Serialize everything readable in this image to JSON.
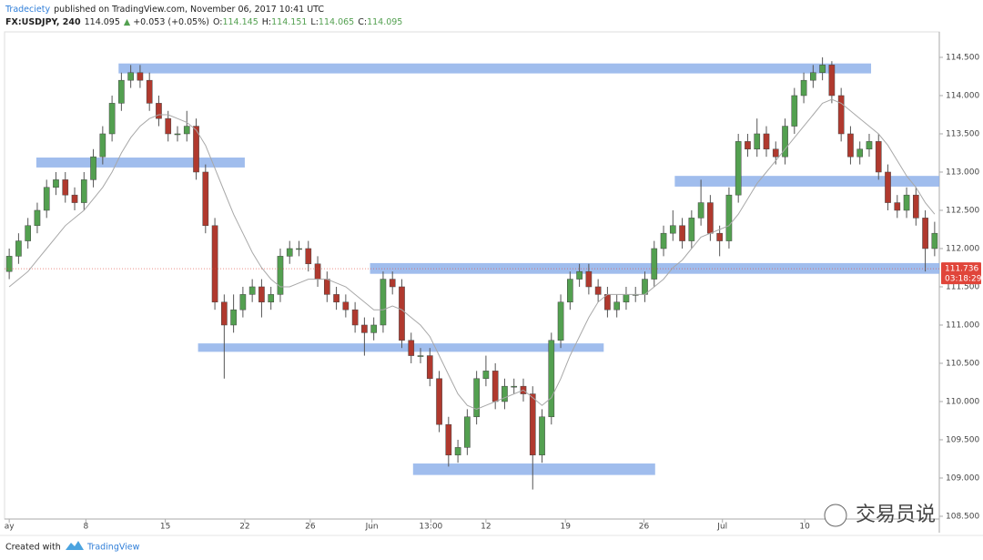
{
  "header": {
    "publisher": "Tradeciety",
    "published": "published on TradingView.com, November 06, 2017 10:41 UTC",
    "symbol": "FX:USDJPY, 240",
    "price": "114.095",
    "arrow": "▲",
    "change": "+0.053 (+0.05%)",
    "o_label": "O:",
    "o": "114.145",
    "h_label": "H:",
    "h": "114.151",
    "l_label": "L:",
    "l": "114.065",
    "c_label": "C:",
    "c": "114.095"
  },
  "footer": {
    "created": "Created with",
    "brand": "TradingView"
  },
  "watermark": "交易员说",
  "chart_data": {
    "type": "candlestick",
    "xlim": [
      -0.5,
      99.5
    ],
    "xticks": [
      {
        "value": 0,
        "label": "ay"
      },
      {
        "value": 8.2,
        "label": "8"
      },
      {
        "value": 16.7,
        "label": "15"
      },
      {
        "value": 25.2,
        "label": "22"
      },
      {
        "value": 32.2,
        "label": "26"
      },
      {
        "value": 38.8,
        "label": "Jun"
      },
      {
        "value": 45.1,
        "label": "13:00"
      },
      {
        "value": 51,
        "label": "12"
      },
      {
        "value": 59.5,
        "label": "19"
      },
      {
        "value": 67.9,
        "label": "26"
      },
      {
        "value": 76.3,
        "label": "Jul"
      },
      {
        "value": 85.1,
        "label": "10"
      }
    ],
    "ylim": [
      108.464,
      114.833
    ],
    "yticks": [
      {
        "value": 108.5,
        "label": "108.500"
      },
      {
        "value": 109,
        "label": "109.000"
      },
      {
        "value": 109.5,
        "label": "109.500"
      },
      {
        "value": 110,
        "label": "110.000"
      },
      {
        "value": 110.5,
        "label": "110.500"
      },
      {
        "value": 111,
        "label": "111.000"
      },
      {
        "value": 111.5,
        "label": "111.500"
      },
      {
        "value": 112,
        "label": "112.000"
      },
      {
        "value": 112.5,
        "label": "112.500"
      },
      {
        "value": 113,
        "label": "113.000"
      },
      {
        "value": 113.5,
        "label": "113.500"
      },
      {
        "value": 114,
        "label": "114.000"
      },
      {
        "value": 114.5,
        "label": "114.500"
      }
    ],
    "up_color": "#53a050",
    "down_color": "#b0392e",
    "ma_color": "#a8a8a8",
    "zone_color": "#8fb1ea",
    "open": [
      111.7,
      111.9,
      112.1,
      112.3,
      112.5,
      112.8,
      112.9,
      112.7,
      112.6,
      112.9,
      113.2,
      113.5,
      113.9,
      114.2,
      114.3,
      114.2,
      113.9,
      113.7,
      113.5,
      113.5,
      113.6,
      113.0,
      112.3,
      111.3,
      111.0,
      111.2,
      111.4,
      111.5,
      111.3,
      111.4,
      111.9,
      112.0,
      112.0,
      111.8,
      111.6,
      111.4,
      111.3,
      111.2,
      111.0,
      110.9,
      111.0,
      111.6,
      111.5,
      110.8,
      110.6,
      110.6,
      110.3,
      109.7,
      109.3,
      109.4,
      109.8,
      110.3,
      110.4,
      110.0,
      110.2,
      110.2,
      110.1,
      109.3,
      109.8,
      110.8,
      111.3,
      111.6,
      111.7,
      111.5,
      111.4,
      111.2,
      111.3,
      111.4,
      111.4,
      111.6,
      112.0,
      112.2,
      112.3,
      112.1,
      112.4,
      112.6,
      112.2,
      112.1,
      112.7,
      113.4,
      113.3,
      113.5,
      113.3,
      113.2,
      113.6,
      114.0,
      114.2,
      114.3,
      114.4,
      114.0,
      113.5,
      113.2,
      113.3,
      113.4,
      113.0,
      112.6,
      112.5,
      112.7,
      112.4,
      112.0
    ],
    "high": [
      112.0,
      112.2,
      112.4,
      112.6,
      112.9,
      113.0,
      113.0,
      112.8,
      113.0,
      113.3,
      113.6,
      114.0,
      114.3,
      114.4,
      114.4,
      114.3,
      114.0,
      113.8,
      113.6,
      113.8,
      113.7,
      113.1,
      112.4,
      111.4,
      111.4,
      111.5,
      111.6,
      111.6,
      111.5,
      112.0,
      112.1,
      112.1,
      112.1,
      111.9,
      111.7,
      111.5,
      111.4,
      111.3,
      111.1,
      111.1,
      111.7,
      111.7,
      111.6,
      110.9,
      110.7,
      110.7,
      110.4,
      109.8,
      109.5,
      109.9,
      110.4,
      110.6,
      110.5,
      110.3,
      110.3,
      110.3,
      110.2,
      109.9,
      110.9,
      111.4,
      111.7,
      111.8,
      111.8,
      111.6,
      111.5,
      111.4,
      111.5,
      111.5,
      111.7,
      112.1,
      112.3,
      112.5,
      112.4,
      112.5,
      112.9,
      112.7,
      112.3,
      112.8,
      113.5,
      113.5,
      113.7,
      113.6,
      113.4,
      113.7,
      114.1,
      114.3,
      114.4,
      114.5,
      114.45,
      114.1,
      113.6,
      113.4,
      113.5,
      113.5,
      113.1,
      112.7,
      112.8,
      112.8,
      112.5,
      112.35
    ],
    "low": [
      111.6,
      111.8,
      112.0,
      112.2,
      112.4,
      112.7,
      112.6,
      112.5,
      112.5,
      112.8,
      113.1,
      113.4,
      113.8,
      114.1,
      114.1,
      113.8,
      113.6,
      113.4,
      113.4,
      113.4,
      112.9,
      112.2,
      111.2,
      110.3,
      110.9,
      111.1,
      111.3,
      111.1,
      111.2,
      111.3,
      111.8,
      111.9,
      111.7,
      111.5,
      111.3,
      111.2,
      111.1,
      110.9,
      110.6,
      110.8,
      110.9,
      111.4,
      110.7,
      110.5,
      110.5,
      110.2,
      109.6,
      109.15,
      109.2,
      109.3,
      109.7,
      110.2,
      109.9,
      109.9,
      110.1,
      110.0,
      108.85,
      109.2,
      109.7,
      110.7,
      111.2,
      111.5,
      111.4,
      111.3,
      111.1,
      111.1,
      111.2,
      111.3,
      111.3,
      111.5,
      111.9,
      112.1,
      112.0,
      112.0,
      112.3,
      112.1,
      111.9,
      112.0,
      112.6,
      113.2,
      113.2,
      113.2,
      113.1,
      113.1,
      113.5,
      113.9,
      114.1,
      114.2,
      113.9,
      113.4,
      113.1,
      113.1,
      113.2,
      112.9,
      112.5,
      112.4,
      112.4,
      112.3,
      111.7,
      111.9
    ],
    "close": [
      111.9,
      112.1,
      112.3,
      112.5,
      112.8,
      112.9,
      112.7,
      112.6,
      112.9,
      113.2,
      113.5,
      113.9,
      114.2,
      114.3,
      114.2,
      113.9,
      113.7,
      113.5,
      113.5,
      113.6,
      113.0,
      112.3,
      111.3,
      111.0,
      111.2,
      111.4,
      111.5,
      111.3,
      111.4,
      111.9,
      112.0,
      112.0,
      111.8,
      111.6,
      111.4,
      111.3,
      111.2,
      111.0,
      110.9,
      111.0,
      111.6,
      111.5,
      110.8,
      110.6,
      110.6,
      110.3,
      109.7,
      109.3,
      109.4,
      109.8,
      110.3,
      110.4,
      110.0,
      110.2,
      110.2,
      110.1,
      109.3,
      109.8,
      110.8,
      111.3,
      111.6,
      111.7,
      111.5,
      111.4,
      111.2,
      111.3,
      111.4,
      111.4,
      111.6,
      112.0,
      112.2,
      112.3,
      112.1,
      112.4,
      112.6,
      112.2,
      112.1,
      112.7,
      113.4,
      113.3,
      113.5,
      113.3,
      113.2,
      113.6,
      114.0,
      114.2,
      114.3,
      114.4,
      114.0,
      113.5,
      113.2,
      113.3,
      113.4,
      113.0,
      112.6,
      112.5,
      112.7,
      112.4,
      112.0,
      112.2
    ],
    "ma": [
      111.5,
      111.6,
      111.7,
      111.85,
      112.0,
      112.15,
      112.3,
      112.4,
      112.5,
      112.65,
      112.8,
      113.0,
      113.25,
      113.45,
      113.6,
      113.7,
      113.75,
      113.75,
      113.7,
      113.65,
      113.55,
      113.35,
      113.05,
      112.75,
      112.45,
      112.2,
      111.95,
      111.75,
      111.6,
      111.5,
      111.5,
      111.55,
      111.6,
      111.6,
      111.6,
      111.55,
      111.5,
      111.4,
      111.3,
      111.2,
      111.2,
      111.25,
      111.2,
      111.1,
      111.0,
      110.85,
      110.6,
      110.35,
      110.1,
      109.95,
      109.9,
      109.95,
      110.0,
      110.05,
      110.1,
      110.15,
      110.05,
      109.95,
      110.05,
      110.3,
      110.6,
      110.85,
      111.1,
      111.3,
      111.4,
      111.4,
      111.4,
      111.4,
      111.4,
      111.5,
      111.6,
      111.75,
      111.85,
      112.0,
      112.15,
      112.2,
      112.25,
      112.3,
      112.45,
      112.65,
      112.85,
      113.0,
      113.15,
      113.3,
      113.45,
      113.6,
      113.75,
      113.9,
      113.95,
      113.9,
      113.8,
      113.7,
      113.6,
      113.5,
      113.35,
      113.15,
      112.95,
      112.8,
      112.6,
      112.45
    ],
    "zones": [
      {
        "range": [
          114.29,
          114.42
        ],
        "span": [
          11.7,
          92.2
        ]
      },
      {
        "range": [
          113.06,
          113.19
        ],
        "span": [
          2.9,
          25.2
        ]
      },
      {
        "range": [
          112.81,
          112.95
        ],
        "span": [
          71.2,
          99.5
        ]
      },
      {
        "range": [
          111.67,
          111.81
        ],
        "span": [
          38.6,
          99.5
        ]
      },
      {
        "range": [
          110.65,
          110.76
        ],
        "span": [
          20.2,
          63.6
        ]
      },
      {
        "range": [
          109.04,
          109.19
        ],
        "span": [
          43.2,
          69.1
        ]
      }
    ],
    "last_price": 111.736,
    "last_color": "#e0453a",
    "countdown": "03:18:29"
  }
}
